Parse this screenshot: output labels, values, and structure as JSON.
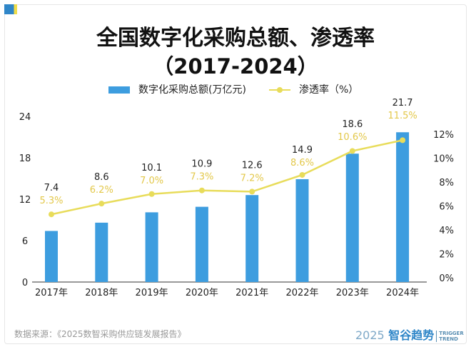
{
  "chart_data": {
    "type": "bar+line",
    "title": "全国数字化采购总额、渗透率",
    "subtitle": "（2017-2024）",
    "categories": [
      "2017年",
      "2018年",
      "2019年",
      "2020年",
      "2021年",
      "2022年",
      "2023年",
      "2024年"
    ],
    "series": [
      {
        "name": "数字化采购总额(万亿元)",
        "type": "bar",
        "axis": "left",
        "color": "#3d9ddf",
        "values": [
          7.4,
          8.6,
          10.1,
          10.9,
          12.6,
          14.9,
          18.6,
          21.7
        ],
        "labels": [
          "7.4",
          "8.6",
          "10.1",
          "10.9",
          "12.6",
          "14.9",
          "18.6",
          "21.7"
        ]
      },
      {
        "name": "渗透率（%）",
        "type": "line",
        "axis": "right",
        "color": "#e8dc5a",
        "values": [
          5.3,
          6.2,
          7.0,
          7.3,
          7.2,
          8.6,
          10.6,
          11.5
        ],
        "labels": [
          "5.3%",
          "6.2%",
          "7.0%",
          "7.3%",
          "7.2%",
          "8.6%",
          "10.6%",
          "11.5%"
        ]
      }
    ],
    "left_axis": {
      "range": [
        0,
        24
      ],
      "ticks": [
        "0",
        "6",
        "12",
        "18",
        "24"
      ]
    },
    "right_axis": {
      "range": [
        0,
        12
      ],
      "ticks": [
        "0%",
        "2%",
        "4%",
        "6%",
        "8%",
        "10%",
        "12%"
      ]
    },
    "legend_position": "top",
    "grid": false
  },
  "source": "数据来源：《2025数智采购供应链发展报告》",
  "logo": {
    "year": "2025",
    "name": "智谷趋势",
    "en1": "TRIGGER",
    "en2": "TREND"
  }
}
